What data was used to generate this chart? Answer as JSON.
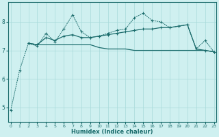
{
  "xlabel": "Humidex (Indice chaleur)",
  "background_color": "#cff0f0",
  "grid_color": "#a8dada",
  "line_color": "#1a6b6b",
  "x": [
    0,
    1,
    2,
    3,
    4,
    5,
    6,
    7,
    8,
    9,
    10,
    11,
    12,
    13,
    14,
    15,
    16,
    17,
    18,
    19,
    20,
    21,
    22,
    23
  ],
  "line1_dotted": [
    4.9,
    6.3,
    7.25,
    7.15,
    7.6,
    7.3,
    7.75,
    8.25,
    7.65,
    7.45,
    7.5,
    7.6,
    7.7,
    7.75,
    8.15,
    8.3,
    8.05,
    8.0,
    7.8,
    7.85,
    7.9,
    7.05,
    7.35,
    6.95
  ],
  "line2_solid_rising": [
    null,
    null,
    7.25,
    7.2,
    7.45,
    7.35,
    7.5,
    7.55,
    7.45,
    7.45,
    7.5,
    7.55,
    7.6,
    7.65,
    7.7,
    7.75,
    7.75,
    7.8,
    7.8,
    7.85,
    7.9,
    7.05,
    7.0,
    6.95
  ],
  "line3_solid_flat": [
    null,
    null,
    7.25,
    7.2,
    7.2,
    7.2,
    7.2,
    7.2,
    7.2,
    7.2,
    7.1,
    7.05,
    7.05,
    7.05,
    7.0,
    7.0,
    7.0,
    7.0,
    7.0,
    7.0,
    7.0,
    7.0,
    7.0,
    6.95
  ],
  "ylim": [
    4.5,
    8.7
  ],
  "yticks": [
    5,
    6,
    7,
    8
  ],
  "xlim": [
    -0.3,
    23.3
  ]
}
